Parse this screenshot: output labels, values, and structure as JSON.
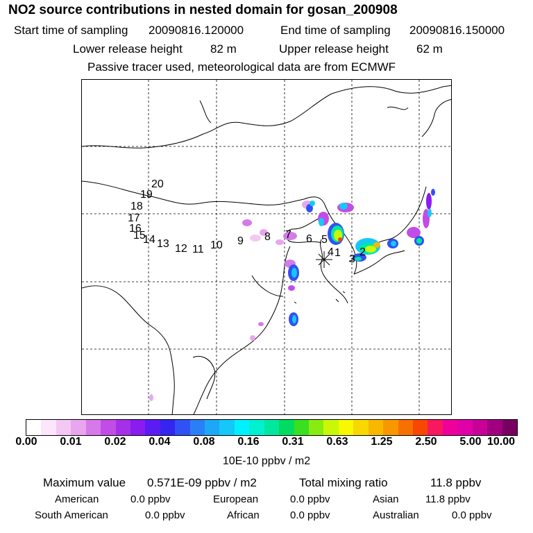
{
  "header": {
    "title": "NO2 source contributions in nested domain for gosan_200908",
    "start_label": "Start time of sampling",
    "start_value": "20090816.120000",
    "end_label": "End time of sampling",
    "end_value": "20090816.150000",
    "lower_label": "Lower release height",
    "lower_value": "82 m",
    "upper_label": "Upper release height",
    "upper_value": "62 m",
    "note": "Passive tracer used, meteorological data are from ECMWF"
  },
  "map": {
    "trajectory_labels": [
      "20",
      "19",
      "18",
      "17",
      "16",
      "15",
      "14",
      "13",
      "12",
      "11",
      "10",
      "9",
      "8",
      "7",
      "6",
      "5",
      "4",
      "1",
      "3",
      "2"
    ],
    "receptor_marker": "asterisk-icon"
  },
  "colorbar": {
    "colors": [
      "#ffffff",
      "#fbe6fb",
      "#f3c8f3",
      "#eaa5ef",
      "#d679ea",
      "#c24de6",
      "#a530e8",
      "#8a1cf0",
      "#5a1cf2",
      "#3426f0",
      "#3052f4",
      "#2b7ff6",
      "#1ca8f6",
      "#16c8f8",
      "#00f0ff",
      "#00f0d0",
      "#00e8a0",
      "#00dc60",
      "#38e020",
      "#88ec10",
      "#c8f808",
      "#f8f800",
      "#f8d800",
      "#f8b800",
      "#f89800",
      "#f87000",
      "#f84800",
      "#f81860",
      "#f0009a",
      "#e000a8",
      "#c80098",
      "#a00080",
      "#780060"
    ],
    "tick_labels": [
      "0.00",
      "0.01",
      "0.02",
      "0.04",
      "0.08",
      "0.16",
      "0.31",
      "0.63",
      "1.25",
      "2.50",
      "5.00",
      "10.00"
    ],
    "unit": "10E-10 ppbv / m2"
  },
  "stats": {
    "max_label": "Maximum value",
    "max_value": "0.571E-09 ppbv / m2",
    "total_label": "Total mixing ratio",
    "total_value": "11.8 ppbv",
    "regions": [
      {
        "name": "American",
        "value": "0.0 ppbv"
      },
      {
        "name": "European",
        "value": "0.0 ppbv"
      },
      {
        "name": "Asian",
        "value": "11.8 ppbv"
      },
      {
        "name": "South American",
        "value": "0.0 ppbv"
      },
      {
        "name": "African",
        "value": "0.0 ppbv"
      },
      {
        "name": "Australian",
        "value": "0.0 ppbv"
      }
    ]
  }
}
